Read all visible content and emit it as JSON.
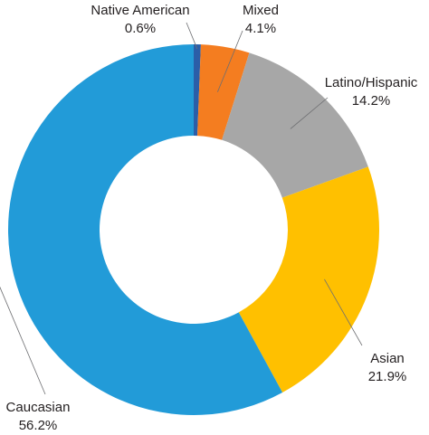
{
  "chart_data": {
    "type": "donut",
    "categories": [
      "Native American",
      "Mixed",
      "Latino/Hispanic",
      "Asian",
      "Caucasian"
    ],
    "values": [
      0.6,
      4.1,
      14.2,
      21.9,
      56.2
    ],
    "value_labels": [
      "0.6%",
      "4.1%",
      "14.2%",
      "21.9%",
      "56.2%"
    ],
    "colors": [
      "#2b5ea8",
      "#f47d20",
      "#a7a7a7",
      "#ffc000",
      "#229bd8"
    ]
  }
}
